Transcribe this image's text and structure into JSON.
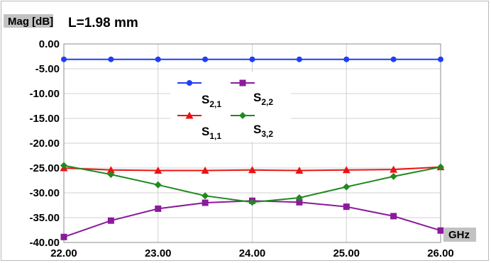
{
  "chart_data": {
    "type": "line",
    "title": "L=1.98 mm",
    "ylabel": "Mag [dB]",
    "xlabel": "GHz",
    "x": [
      22.0,
      22.5,
      23.0,
      23.5,
      24.0,
      24.5,
      25.0,
      25.5,
      26.0
    ],
    "xticks": [
      "22.00",
      "23.00",
      "24.00",
      "25.00",
      "26.00"
    ],
    "xlim": [
      22.0,
      26.0
    ],
    "yticks": [
      "0.00",
      "-5.00",
      "-10.00",
      "-15.00",
      "-20.00",
      "-25.00",
      "-30.00",
      "-35.00",
      "-40.00"
    ],
    "ylim": [
      -40.0,
      0.0
    ],
    "grid": true,
    "legend_position": "center",
    "series": [
      {
        "name": "S",
        "subscript": "2,1",
        "color": "#1f3ff5",
        "marker": "circle",
        "values": [
          -3.1,
          -3.1,
          -3.1,
          -3.1,
          -3.1,
          -3.1,
          -3.1,
          -3.1,
          -3.1
        ]
      },
      {
        "name": "S",
        "subscript": "2,2",
        "color": "#8b1a9c",
        "marker": "square",
        "values": [
          -38.9,
          -35.6,
          -33.2,
          -32.0,
          -31.6,
          -31.9,
          -32.8,
          -34.7,
          -37.6
        ]
      },
      {
        "name": "S",
        "subscript": "1,1",
        "color": "#ee1111",
        "marker": "triangle",
        "values": [
          -25.0,
          -25.4,
          -25.5,
          -25.5,
          -25.4,
          -25.5,
          -25.4,
          -25.3,
          -24.8
        ]
      },
      {
        "name": "S",
        "subscript": "3,2",
        "color": "#1f8a1f",
        "marker": "diamond",
        "values": [
          -24.5,
          -26.3,
          -28.4,
          -30.6,
          -31.9,
          -31.0,
          -28.8,
          -26.7,
          -24.8
        ]
      }
    ]
  }
}
